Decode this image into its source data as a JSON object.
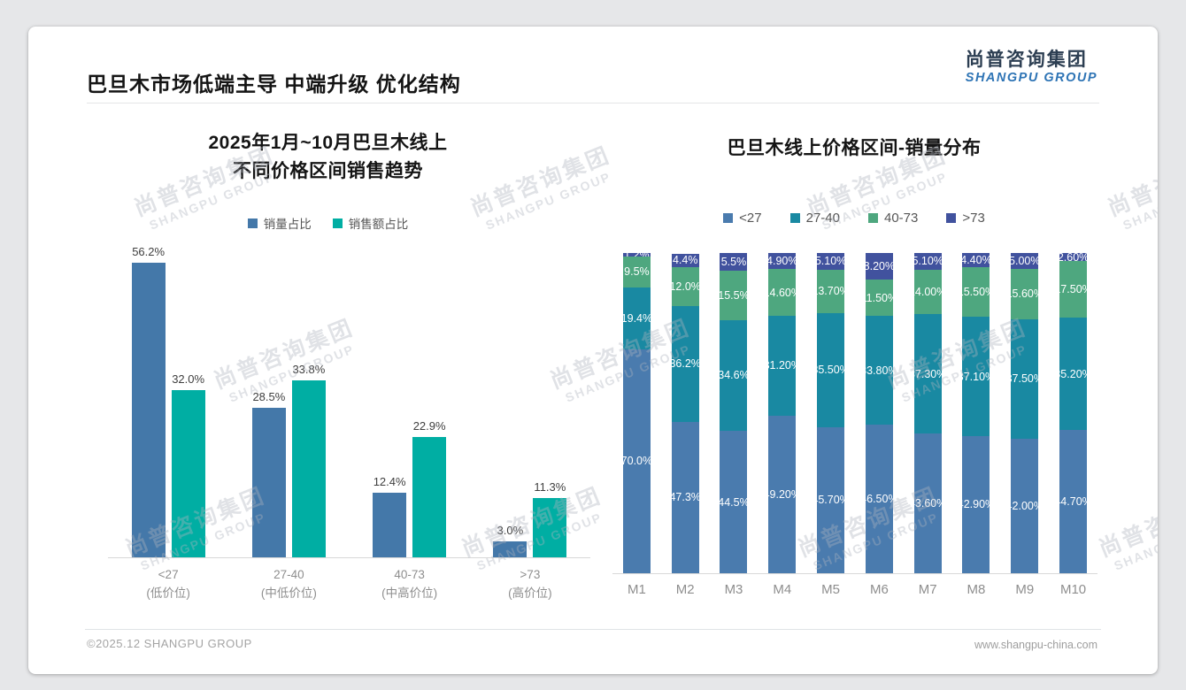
{
  "slide": {
    "title": "巴旦木市场低端主导 中端升级 优化结构",
    "logo": {
      "cn": "尚普咨询集团",
      "en": "SHANGPU GROUP"
    },
    "footer": {
      "left": "©2025.12 SHANGPU GROUP",
      "right": "www.shangpu-china.com"
    },
    "watermark": {
      "cn": "尚普咨询集团",
      "en": "SHANGPU GROUP"
    }
  },
  "colors": {
    "volume_blue": "#4478a9",
    "sales_teal": "#00aea3",
    "stack_lt27": "#4a7bae",
    "stack_27_40": "#1989a2",
    "stack_40_73": "#4ea77f",
    "stack_gt73": "#41529e",
    "logo_blue": "#2e74b5"
  },
  "chart_data": [
    {
      "type": "bar",
      "title": "2025年1月~10月巴旦木线上\n不同价格区间销售趋势",
      "categories": [
        "<27",
        "27-40",
        "40-73",
        ">73"
      ],
      "category_sublabels": [
        "(低价位)",
        "(中低价位)",
        "(中高价位)",
        "(高价位)"
      ],
      "series": [
        {
          "name": "销量占比",
          "color": "#4478a9",
          "values": [
            56.2,
            28.5,
            12.4,
            3.0
          ],
          "labels": [
            "56.2%",
            "28.5%",
            "12.4%",
            "3.0%"
          ]
        },
        {
          "name": "销售额占比",
          "color": "#00aea3",
          "values": [
            32.0,
            33.8,
            22.9,
            11.3
          ],
          "labels": [
            "32.0%",
            "33.8%",
            "22.9%",
            "11.3%"
          ]
        }
      ],
      "xlabel": "",
      "ylabel": "",
      "ylim": [
        0,
        60
      ],
      "grid": false,
      "legend_position": "top"
    },
    {
      "type": "stacked-bar",
      "title": "巴旦木线上价格区间-销量分布",
      "categories": [
        "M1",
        "M2",
        "M3",
        "M4",
        "M5",
        "M6",
        "M7",
        "M8",
        "M9",
        "M10"
      ],
      "series": [
        {
          "name": "<27",
          "color": "#4a7bae",
          "values": [
            70.0,
            47.3,
            44.5,
            49.2,
            45.7,
            46.5,
            43.6,
            42.9,
            42.0,
            44.7
          ],
          "labels": [
            "70.0%",
            "47.3%",
            "44.5%",
            "49.20%",
            "45.70%",
            "46.50%",
            "43.60%",
            "42.90%",
            "42.00%",
            "44.70%"
          ]
        },
        {
          "name": "27-40",
          "color": "#1989a2",
          "values": [
            19.4,
            36.2,
            34.6,
            31.2,
            35.5,
            33.8,
            37.3,
            37.1,
            37.5,
            35.2
          ],
          "labels": [
            "19.4%",
            "36.2%",
            "34.6%",
            "31.20%",
            "35.50%",
            "33.80%",
            "37.30%",
            "37.10%",
            "37.50%",
            "35.20%"
          ]
        },
        {
          "name": "40-73",
          "color": "#4ea77f",
          "values": [
            9.5,
            12.0,
            15.5,
            14.6,
            13.7,
            11.5,
            14.0,
            15.5,
            15.6,
            17.5
          ],
          "labels": [
            "9.5%",
            "12.0%",
            "15.5%",
            "14.60%",
            "13.70%",
            "11.50%",
            "14.00%",
            "15.50%",
            "15.60%",
            "17.50%"
          ]
        },
        {
          "name": ">73",
          "color": "#41529e",
          "values": [
            1.2,
            4.4,
            5.5,
            4.9,
            5.1,
            8.2,
            5.1,
            4.4,
            5.0,
            2.6
          ],
          "labels": [
            "1.2%",
            "4.4%",
            "5.5%",
            "4.90%",
            "5.10%",
            "8.20%",
            "5.10%",
            "4.40%",
            "5.00%",
            "2.60%"
          ]
        }
      ],
      "xlabel": "",
      "ylabel": "",
      "ylim": [
        0,
        100
      ],
      "grid": false,
      "legend_position": "top"
    }
  ]
}
